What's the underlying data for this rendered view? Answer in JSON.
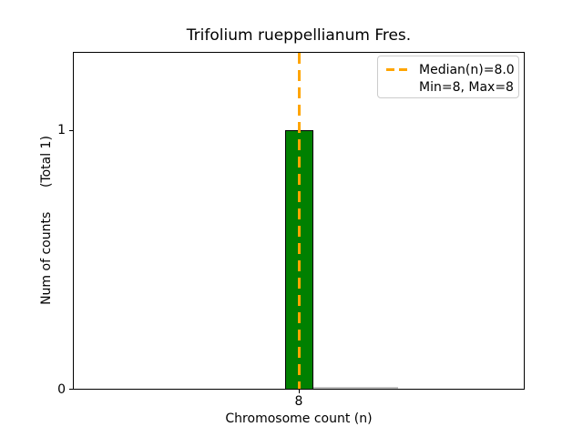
{
  "chart_data": {
    "type": "bar",
    "title": "Trifolium rueppellianum Fres.",
    "xlabel": "Chromosome count (n)",
    "ylabel": "Num of counts      (Total 1)",
    "categories": [
      8
    ],
    "values": [
      1
    ],
    "x_ticks": [
      "8"
    ],
    "y_ticks": [
      "0",
      "1"
    ],
    "ylim": [
      0,
      1.3
    ],
    "grid": false,
    "bar_color": "#008000",
    "bar_edge_color": "#000000",
    "median_line": {
      "value": 8.0,
      "color": "#FFA500",
      "style": "dashed",
      "orientation": "vertical"
    },
    "legend": {
      "position": "upper right",
      "entries": [
        {
          "label": "Median(n)=8.0",
          "handle": "orange-dashed-line"
        },
        {
          "label": "Min=8, Max=8",
          "handle": "none"
        }
      ]
    }
  }
}
